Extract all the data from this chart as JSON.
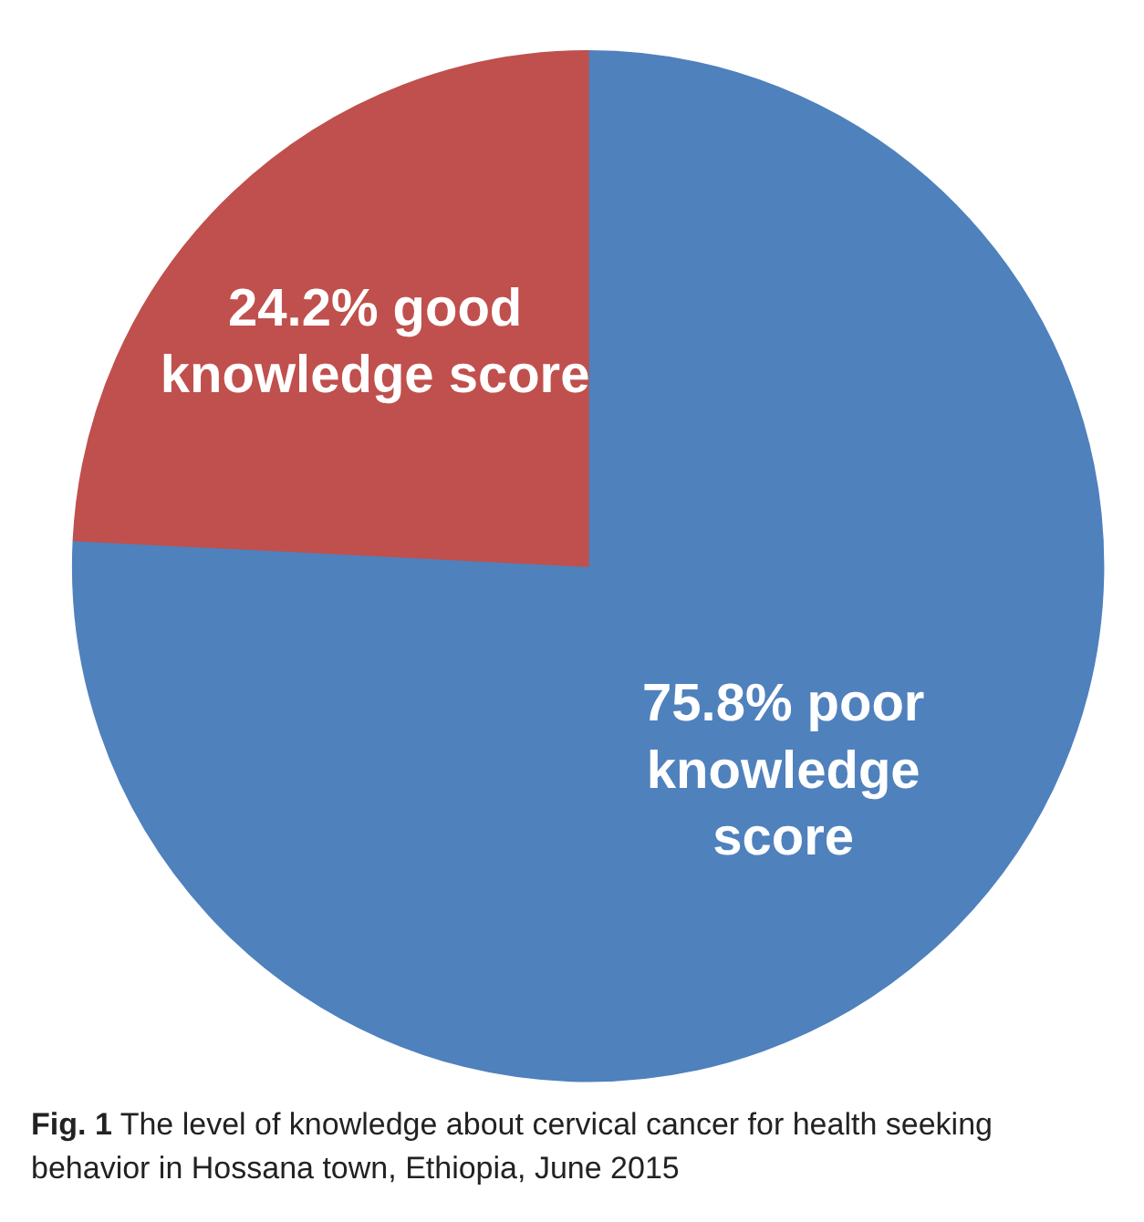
{
  "chart_data": {
    "type": "pie",
    "categories": [
      "poor knowledge score",
      "good knowledge score"
    ],
    "values": [
      75.8,
      24.2
    ],
    "colors": [
      "#4f81bd",
      "#c0504d"
    ],
    "value_labels": [
      "75.8%",
      "24.2%"
    ],
    "legend": false,
    "annotations": [
      "Fig. 1 The level of knowledge about cervical cancer for health seeking behavior in Hossana town, Ethiopia, June 2015"
    ]
  }
}
